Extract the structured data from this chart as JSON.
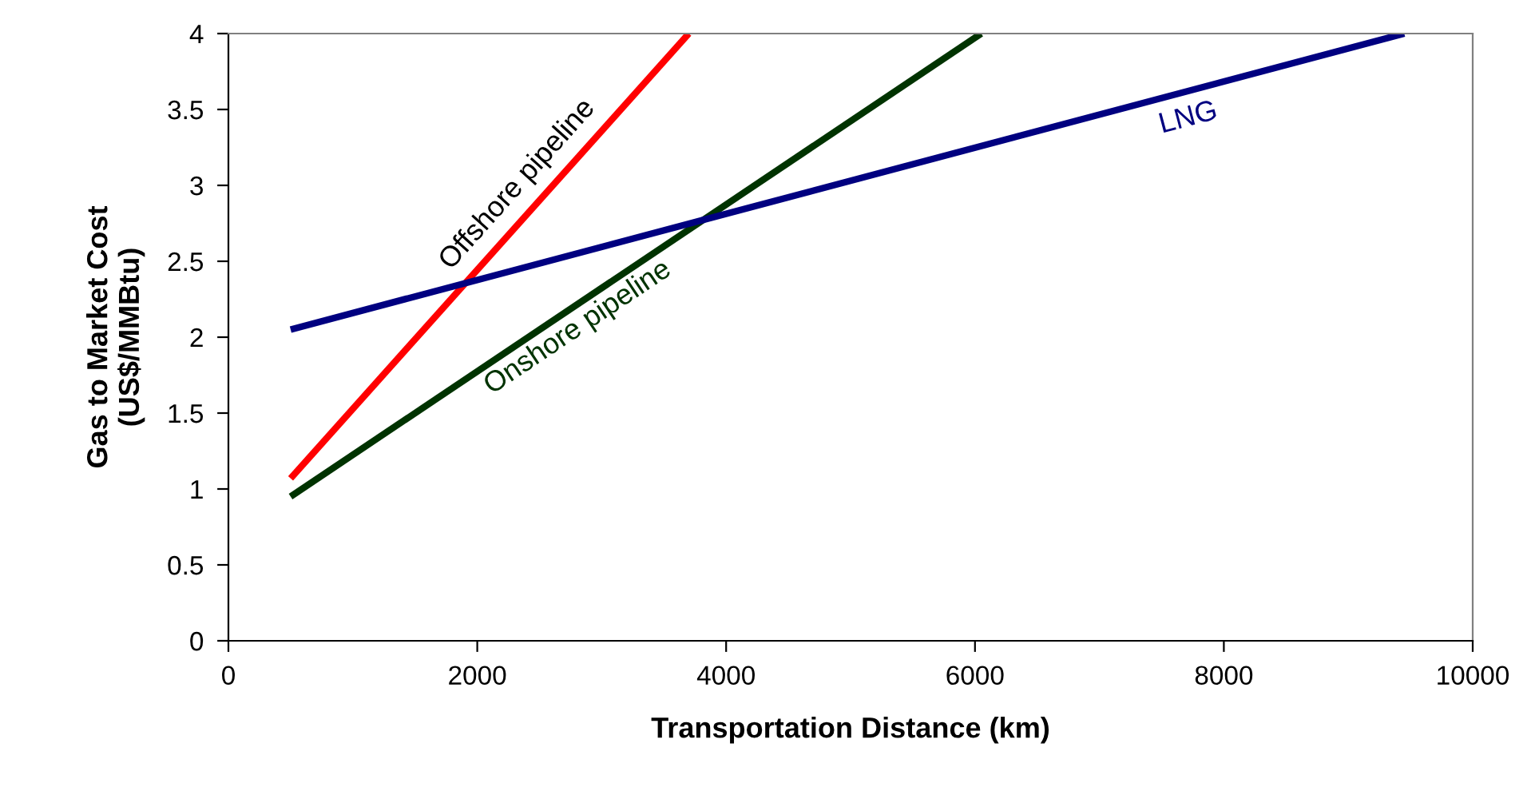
{
  "chart_data": {
    "type": "line",
    "xlabel": "Transportation Distance (km)",
    "ylabel": "Gas to Market Cost\n(US$/MMBtu)",
    "xlim": [
      0,
      10000
    ],
    "xticks": [
      0,
      2000,
      4000,
      6000,
      8000,
      10000
    ],
    "ylim": [
      0,
      4
    ],
    "yticks": [
      0,
      0.5,
      1,
      1.5,
      2,
      2.5,
      3,
      3.5,
      4
    ],
    "grid": false,
    "legend": false,
    "marker": "none",
    "line_style": "solid",
    "series": [
      {
        "name": "Offshore pipeline",
        "color": "#ff0000",
        "x": [
          500,
          3700
        ],
        "values": [
          1.07,
          4
        ]
      },
      {
        "name": "Onshore pipeline",
        "color": "#003300",
        "x": [
          500,
          6050
        ],
        "values": [
          0.95,
          4
        ]
      },
      {
        "name": "LNG",
        "color": "#000080",
        "x": [
          500,
          9450
        ],
        "values": [
          2.05,
          4
        ]
      }
    ]
  }
}
